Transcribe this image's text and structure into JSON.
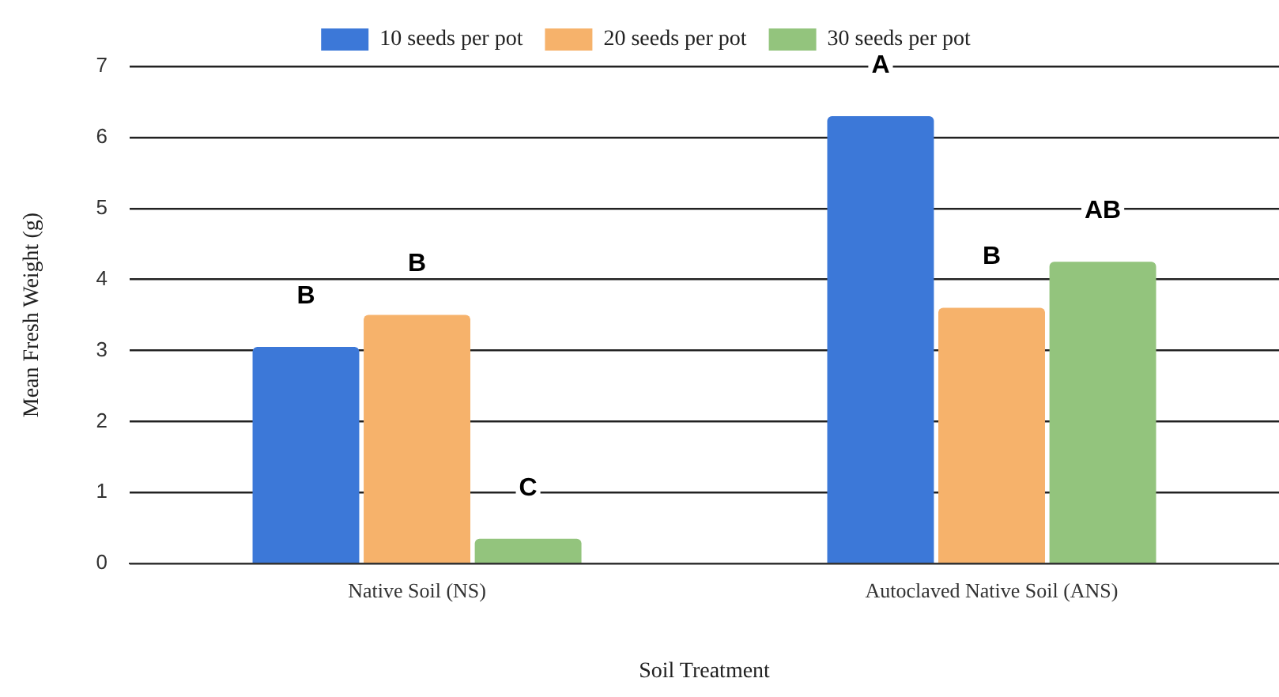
{
  "chart_data": {
    "type": "bar",
    "xlabel": "Soil Treatment",
    "ylabel": "Mean Fresh Weight (g)",
    "categories": [
      "Native Soil (NS)",
      "Autoclaved Native Soil (ANS)"
    ],
    "series": [
      {
        "name": "10 seeds per pot",
        "color": "#3c78d8",
        "values": [
          3.05,
          6.3
        ],
        "value_labels": [
          "B",
          "A"
        ]
      },
      {
        "name": "20 seeds per pot",
        "color": "#f6b26b",
        "values": [
          3.5,
          3.6
        ],
        "value_labels": [
          "B",
          "B"
        ]
      },
      {
        "name": "30 seeds per pot",
        "color": "#93c47d",
        "values": [
          0.35,
          4.25
        ],
        "value_labels": [
          "C",
          "AB"
        ]
      }
    ],
    "ylim": [
      0,
      7
    ],
    "yticks": [
      0,
      1,
      2,
      3,
      4,
      5,
      6,
      7
    ],
    "grid": "y",
    "legend": "top"
  }
}
